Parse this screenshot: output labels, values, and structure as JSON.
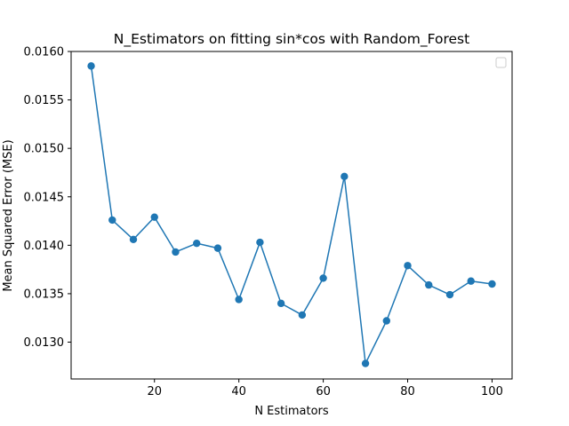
{
  "chart_data": {
    "type": "line",
    "title": "N_Estimators on fitting sin*cos with Random_Forest",
    "xlabel": "N Estimators",
    "ylabel": "Mean Squared Error (MSE)",
    "xlim": [
      0.25,
      104.75
    ],
    "ylim": [
      0.01262,
      0.016
    ],
    "xticks": [
      20,
      40,
      60,
      80,
      100
    ],
    "xtick_labels": [
      "20",
      "40",
      "60",
      "80",
      "100"
    ],
    "yticks": [
      0.013,
      0.0135,
      0.014,
      0.0145,
      0.015,
      0.0155,
      0.016
    ],
    "ytick_labels": [
      "0.0130",
      "0.0135",
      "0.0140",
      "0.0145",
      "0.0150",
      "0.0155",
      "0.0160"
    ],
    "grid": false,
    "legend": {
      "placement": "upper right",
      "entries": []
    },
    "series": [
      {
        "color": "#1f77b4",
        "marker": "circle",
        "x": [
          5,
          10,
          15,
          20,
          25,
          30,
          35,
          40,
          45,
          50,
          55,
          60,
          65,
          70,
          75,
          80,
          85,
          90,
          95,
          100
        ],
        "y": [
          0.01585,
          0.01426,
          0.01406,
          0.01429,
          0.01393,
          0.01402,
          0.01397,
          0.01344,
          0.01403,
          0.0134,
          0.01328,
          0.01366,
          0.01471,
          0.01278,
          0.01322,
          0.01379,
          0.01359,
          0.01349,
          0.01363,
          0.0136
        ]
      }
    ]
  }
}
